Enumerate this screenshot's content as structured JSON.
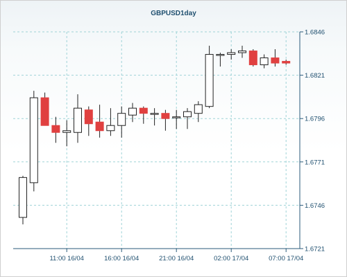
{
  "chart_data": {
    "type": "candlestick",
    "title": "GBPUSD1day",
    "xlabel": "",
    "ylabel": "",
    "ylim": [
      1.6721,
      1.6846
    ],
    "y_ticks": [
      "1.6846",
      "1.6821",
      "1.6796",
      "1.6771",
      "1.6746",
      "1.6721"
    ],
    "x_ticks": [
      {
        "label": "11:00 16/04",
        "index": 4
      },
      {
        "label": "16:00 16/04",
        "index": 9
      },
      {
        "label": "21:00 16/04",
        "index": 14
      },
      {
        "label": "02:00 17/04",
        "index": 19
      },
      {
        "label": "07:00 17/04",
        "index": 24
      }
    ],
    "grid": true,
    "legend": "none",
    "colors": {
      "up_body": "#ffffff",
      "down_body": "#e04040",
      "outline": "#222222",
      "grid": "#9fd3d7",
      "axis": "#2a5a7a",
      "text": "#1f4f6f"
    },
    "candles": [
      {
        "open": 1.6739,
        "high": 1.6763,
        "low": 1.6735,
        "close": 1.6762
      },
      {
        "open": 1.6759,
        "high": 1.6812,
        "low": 1.6754,
        "close": 1.6808
      },
      {
        "open": 1.6808,
        "high": 1.6811,
        "low": 1.6792,
        "close": 1.6792
      },
      {
        "open": 1.6792,
        "high": 1.6797,
        "low": 1.6782,
        "close": 1.6788
      },
      {
        "open": 1.6788,
        "high": 1.6795,
        "low": 1.678,
        "close": 1.6789
      },
      {
        "open": 1.6788,
        "high": 1.681,
        "low": 1.6782,
        "close": 1.6802
      },
      {
        "open": 1.6801,
        "high": 1.6803,
        "low": 1.6786,
        "close": 1.6793
      },
      {
        "open": 1.6794,
        "high": 1.6804,
        "low": 1.6785,
        "close": 1.6789
      },
      {
        "open": 1.6789,
        "high": 1.6802,
        "low": 1.6786,
        "close": 1.6792
      },
      {
        "open": 1.6792,
        "high": 1.6803,
        "low": 1.6785,
        "close": 1.6799
      },
      {
        "open": 1.6798,
        "high": 1.6805,
        "low": 1.6794,
        "close": 1.6802
      },
      {
        "open": 1.6802,
        "high": 1.6803,
        "low": 1.6793,
        "close": 1.6799
      },
      {
        "open": 1.6799,
        "high": 1.6802,
        "low": 1.6792,
        "close": 1.6799
      },
      {
        "open": 1.6799,
        "high": 1.6801,
        "low": 1.6789,
        "close": 1.6796
      },
      {
        "open": 1.6797,
        "high": 1.6801,
        "low": 1.679,
        "close": 1.6797
      },
      {
        "open": 1.6797,
        "high": 1.6802,
        "low": 1.679,
        "close": 1.68
      },
      {
        "open": 1.6799,
        "high": 1.6806,
        "low": 1.6794,
        "close": 1.6804
      },
      {
        "open": 1.6803,
        "high": 1.6838,
        "low": 1.6802,
        "close": 1.6833
      },
      {
        "open": 1.6833,
        "high": 1.6834,
        "low": 1.6826,
        "close": 1.6833
      },
      {
        "open": 1.6833,
        "high": 1.6836,
        "low": 1.683,
        "close": 1.6834
      },
      {
        "open": 1.6834,
        "high": 1.6838,
        "low": 1.6831,
        "close": 1.6835
      },
      {
        "open": 1.6835,
        "high": 1.6836,
        "low": 1.6826,
        "close": 1.6827
      },
      {
        "open": 1.6827,
        "high": 1.6833,
        "low": 1.6825,
        "close": 1.6831
      },
      {
        "open": 1.6831,
        "high": 1.6836,
        "low": 1.6826,
        "close": 1.6828
      },
      {
        "open": 1.6829,
        "high": 1.683,
        "low": 1.6827,
        "close": 1.6828
      }
    ]
  }
}
